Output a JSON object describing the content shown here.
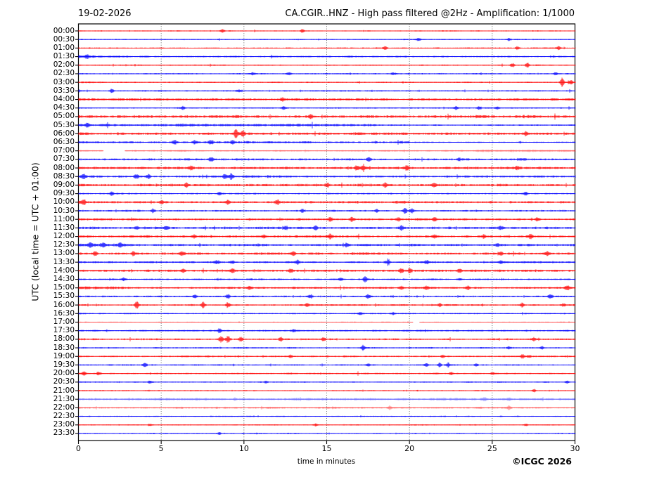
{
  "header": {
    "date": "19-02-2026",
    "title": "CA.CGIR..HNZ - High pass filtered @2Hz - Amplification: 1/1000"
  },
  "footer": {
    "copyright": "©ICGC 2026"
  },
  "chart_data": {
    "type": "line",
    "subtype": "helicorder-seismogram",
    "title": "CA.CGIR..HNZ - High pass filtered @2Hz - Amplification: 1/1000",
    "date": "19-02-2026",
    "xlabel": "time in minutes",
    "ylabel": "UTC (local time = UTC + 01:00)",
    "xlim": [
      0,
      30
    ],
    "xticks": [
      0,
      5,
      10,
      15,
      20,
      25,
      30
    ],
    "grid": {
      "vertical_dotted_at": [
        5,
        10,
        15,
        20,
        25
      ],
      "color": "#555555"
    },
    "trace_colors": {
      "hour": "#ff0000",
      "half_hour": "#0000ff"
    },
    "row_interval_minutes": 30,
    "rows": [
      {
        "time": "00:00",
        "color": "red",
        "amp": 0.8,
        "events": [
          [
            8.7,
            1.5
          ],
          [
            13.5,
            1.8
          ]
        ]
      },
      {
        "time": "00:30",
        "color": "blue",
        "amp": 0.8,
        "events": [
          [
            20.5,
            1.5
          ],
          [
            26.0,
            1.2
          ]
        ]
      },
      {
        "time": "01:00",
        "color": "red",
        "amp": 0.9,
        "events": [
          [
            18.5,
            2.2
          ],
          [
            26.5,
            2.0
          ],
          [
            29.0,
            1.8
          ]
        ]
      },
      {
        "time": "01:30",
        "color": "blue",
        "amp": 1.1,
        "events": [
          [
            0.5,
            2.0
          ]
        ],
        "segments": [
          [
            0,
            3,
            1.6
          ]
        ]
      },
      {
        "time": "02:00",
        "color": "red",
        "amp": 0.9,
        "events": [
          [
            26.2,
            2.2
          ],
          [
            27.1,
            3.0
          ]
        ]
      },
      {
        "time": "02:30",
        "color": "blue",
        "amp": 1.0,
        "events": [
          [
            10.5,
            1.8
          ],
          [
            12.7,
            1.6
          ],
          [
            19.0,
            1.4
          ],
          [
            28.8,
            1.4
          ]
        ]
      },
      {
        "time": "03:00",
        "color": "red",
        "amp": 0.9,
        "events": [
          [
            29.2,
            5.0
          ],
          [
            29.7,
            3.5
          ]
        ]
      },
      {
        "time": "03:30",
        "color": "blue",
        "amp": 1.0,
        "events": [
          [
            2.0,
            2.4
          ],
          [
            9.7,
            1.4
          ]
        ]
      },
      {
        "time": "04:00",
        "color": "red",
        "amp": 1.6,
        "events": [
          [
            12.3,
            2.0
          ]
        ]
      },
      {
        "time": "04:30",
        "color": "blue",
        "amp": 1.0,
        "events": [
          [
            6.3,
            2.4
          ],
          [
            12.4,
            2.0
          ],
          [
            22.8,
            2.0
          ],
          [
            24.2,
            2.0
          ],
          [
            25.3,
            1.5
          ]
        ]
      },
      {
        "time": "05:00",
        "color": "red",
        "amp": 1.9,
        "events": [
          [
            14.0,
            2.4
          ]
        ]
      },
      {
        "time": "05:30",
        "color": "blue",
        "amp": 1.8,
        "events": [
          [
            0.5,
            2.4
          ]
        ],
        "segments": [
          [
            18,
            30,
            0.55
          ]
        ]
      },
      {
        "time": "06:00",
        "color": "red",
        "amp": 1.7,
        "events": [
          [
            9.5,
            5.0
          ],
          [
            9.9,
            3.0
          ],
          [
            27.0,
            2.2
          ]
        ]
      },
      {
        "time": "06:30",
        "color": "blue",
        "amp": 1.4,
        "events": [
          [
            5.8,
            2.4
          ],
          [
            7.0,
            2.0
          ],
          [
            8.0,
            2.4
          ],
          [
            9.3,
            2.0
          ]
        ],
        "segments": [
          [
            20,
            30,
            0.6
          ]
        ]
      },
      {
        "time": "07:00",
        "color": "red",
        "amp": 1.2,
        "alpha": 0.35,
        "gaps": [
          [
            1.5,
            2.8
          ]
        ],
        "segments": [
          [
            24,
            30,
            1.5
          ]
        ]
      },
      {
        "time": "07:30",
        "color": "blue",
        "amp": 1.4,
        "events": [
          [
            8.0,
            2.8
          ],
          [
            17.5,
            2.4
          ],
          [
            23.0,
            1.8
          ]
        ]
      },
      {
        "time": "08:00",
        "color": "red",
        "amp": 1.6,
        "events": [
          [
            6.8,
            2.4
          ],
          [
            16.8,
            3.2
          ],
          [
            17.2,
            3.8
          ],
          [
            19.8,
            2.4
          ],
          [
            26.5,
            2.0
          ]
        ]
      },
      {
        "time": "08:30",
        "color": "blue",
        "amp": 1.5,
        "events": [
          [
            0.3,
            2.8
          ],
          [
            3.5,
            2.4
          ],
          [
            4.2,
            2.4
          ],
          [
            8.8,
            2.8
          ],
          [
            9.2,
            3.2
          ]
        ]
      },
      {
        "time": "09:00",
        "color": "red",
        "amp": 1.7,
        "events": [
          [
            6.5,
            2.0
          ],
          [
            15.0,
            2.0
          ],
          [
            18.5,
            2.4
          ],
          [
            21.5,
            2.0
          ]
        ]
      },
      {
        "time": "09:30",
        "color": "blue",
        "amp": 1.0,
        "events": [
          [
            2.0,
            2.0
          ],
          [
            8.5,
            2.4
          ],
          [
            27.0,
            2.0
          ]
        ]
      },
      {
        "time": "10:00",
        "color": "red",
        "amp": 1.6,
        "events": [
          [
            0.3,
            3.2
          ],
          [
            5.0,
            2.0
          ],
          [
            9.0,
            2.0
          ],
          [
            12.0,
            1.8
          ]
        ]
      },
      {
        "time": "10:30",
        "color": "blue",
        "amp": 1.2,
        "events": [
          [
            4.5,
            2.0
          ],
          [
            13.5,
            1.8
          ],
          [
            18.0,
            1.8
          ],
          [
            19.7,
            3.2
          ],
          [
            20.1,
            2.8
          ]
        ]
      },
      {
        "time": "11:00",
        "color": "red",
        "amp": 1.4,
        "events": [
          [
            15.2,
            2.8
          ],
          [
            16.5,
            2.4
          ],
          [
            19.3,
            2.4
          ],
          [
            21.5,
            2.4
          ],
          [
            27.7,
            1.8
          ]
        ]
      },
      {
        "time": "11:30",
        "color": "blue",
        "amp": 1.6,
        "events": [
          [
            3.5,
            2.0
          ],
          [
            5.3,
            2.0
          ],
          [
            12.5,
            2.4
          ],
          [
            14.3,
            2.4
          ],
          [
            19.5,
            2.4
          ],
          [
            25.5,
            2.0
          ]
        ]
      },
      {
        "time": "12:00",
        "color": "red",
        "amp": 1.5,
        "events": [
          [
            7.0,
            2.0
          ],
          [
            11.2,
            2.0
          ],
          [
            15.2,
            2.4
          ],
          [
            21.5,
            2.4
          ],
          [
            24.5,
            2.0
          ],
          [
            27.3,
            3.2
          ]
        ]
      },
      {
        "time": "12:30",
        "color": "blue",
        "amp": 1.5,
        "events": [
          [
            0.7,
            2.8
          ],
          [
            1.5,
            2.4
          ],
          [
            2.5,
            2.4
          ],
          [
            16.2,
            2.4
          ],
          [
            25.3,
            2.0
          ]
        ],
        "segments": [
          [
            0,
            4,
            1.4
          ]
        ]
      },
      {
        "time": "13:00",
        "color": "red",
        "amp": 1.5,
        "events": [
          [
            1.0,
            2.4
          ],
          [
            3.3,
            2.4
          ],
          [
            6.2,
            2.4
          ],
          [
            13.0,
            2.4
          ],
          [
            25.5,
            2.0
          ],
          [
            28.3,
            2.0
          ]
        ]
      },
      {
        "time": "13:30",
        "color": "blue",
        "amp": 1.3,
        "events": [
          [
            8.3,
            2.0
          ],
          [
            9.3,
            2.4
          ],
          [
            13.2,
            2.4
          ],
          [
            18.7,
            3.2
          ],
          [
            21.0,
            2.0
          ],
          [
            25.5,
            2.0
          ]
        ]
      },
      {
        "time": "14:00",
        "color": "red",
        "amp": 1.6,
        "events": [
          [
            6.3,
            2.0
          ],
          [
            9.3,
            2.0
          ],
          [
            12.8,
            2.0
          ],
          [
            19.5,
            2.8
          ],
          [
            20.0,
            2.4
          ],
          [
            23.0,
            2.0
          ]
        ]
      },
      {
        "time": "14:30",
        "color": "blue",
        "amp": 1.1,
        "events": [
          [
            2.7,
            2.0
          ],
          [
            15.8,
            2.0
          ],
          [
            17.3,
            3.2
          ],
          [
            23.0,
            1.5
          ]
        ]
      },
      {
        "time": "15:00",
        "color": "red",
        "amp": 1.4,
        "events": [
          [
            10.3,
            2.0
          ],
          [
            19.5,
            2.0
          ],
          [
            21.0,
            2.0
          ],
          [
            23.5,
            2.0
          ],
          [
            29.5,
            3.2
          ]
        ],
        "segments": [
          [
            0,
            3,
            1.4
          ]
        ]
      },
      {
        "time": "15:30",
        "color": "blue",
        "amp": 1.2,
        "events": [
          [
            7.0,
            2.0
          ],
          [
            9.0,
            2.4
          ],
          [
            14.0,
            2.0
          ],
          [
            17.5,
            2.0
          ],
          [
            28.5,
            2.4
          ]
        ]
      },
      {
        "time": "16:00",
        "color": "red",
        "amp": 1.1,
        "events": [
          [
            3.5,
            3.8
          ],
          [
            7.5,
            3.4
          ],
          [
            9.0,
            3.4
          ],
          [
            13.8,
            2.0
          ],
          [
            21.8,
            2.0
          ],
          [
            26.8,
            2.4
          ],
          [
            29.3,
            2.0
          ]
        ]
      },
      {
        "time": "16:30",
        "color": "blue",
        "amp": 0.9,
        "events": [
          [
            17.0,
            1.4
          ],
          [
            19.0,
            1.4
          ]
        ]
      },
      {
        "time": "17:00",
        "color": "red",
        "amp": 0.7,
        "alpha": 0.5,
        "gaps": [
          [
            20.2,
            20.6
          ]
        ]
      },
      {
        "time": "17:30",
        "color": "blue",
        "amp": 1.1,
        "events": [
          [
            8.5,
            2.8
          ],
          [
            13.0,
            1.6
          ]
        ]
      },
      {
        "time": "18:00",
        "color": "red",
        "amp": 1.2,
        "events": [
          [
            8.6,
            3.8
          ],
          [
            9.0,
            3.8
          ],
          [
            9.8,
            2.4
          ],
          [
            12.2,
            2.4
          ],
          [
            14.8,
            2.0
          ],
          [
            27.5,
            2.0
          ]
        ]
      },
      {
        "time": "18:30",
        "color": "blue",
        "amp": 1.0,
        "events": [
          [
            17.2,
            3.2
          ],
          [
            26.0,
            1.5
          ],
          [
            28.0,
            1.5
          ]
        ]
      },
      {
        "time": "19:00",
        "color": "red",
        "amp": 1.1,
        "events": [
          [
            12.8,
            2.0
          ],
          [
            22.0,
            1.5
          ],
          [
            26.8,
            2.4
          ],
          [
            27.2,
            2.0
          ]
        ]
      },
      {
        "time": "19:30",
        "color": "blue",
        "amp": 1.0,
        "events": [
          [
            4.0,
            2.8
          ],
          [
            17.5,
            1.5
          ],
          [
            21.0,
            2.0
          ],
          [
            21.8,
            2.4
          ],
          [
            22.3,
            2.4
          ],
          [
            24.0,
            1.5
          ]
        ]
      },
      {
        "time": "20:00",
        "color": "red",
        "amp": 1.0,
        "events": [
          [
            0.3,
            2.4
          ],
          [
            1.2,
            2.0
          ],
          [
            22.5,
            1.5
          ],
          [
            25.0,
            1.4
          ]
        ]
      },
      {
        "time": "20:30",
        "color": "blue",
        "amp": 0.9,
        "events": [
          [
            4.3,
            1.5
          ],
          [
            11.3,
            1.4
          ],
          [
            29.5,
            1.4
          ]
        ]
      },
      {
        "time": "21:00",
        "color": "red",
        "amp": 0.8,
        "events": [
          [
            27.5,
            1.4
          ]
        ]
      },
      {
        "time": "21:30",
        "color": "blue",
        "amp": 1.6,
        "alpha": 0.35,
        "events": [
          [
            24.5,
            1.5
          ],
          [
            26.0,
            1.5
          ]
        ]
      },
      {
        "time": "22:00",
        "color": "red",
        "amp": 1.3,
        "alpha": 0.4,
        "events": [
          [
            18.8,
            2.4
          ],
          [
            26.0,
            2.0
          ]
        ]
      },
      {
        "time": "22:30",
        "color": "blue",
        "amp": 0.8,
        "events": []
      },
      {
        "time": "23:00",
        "color": "red",
        "amp": 0.8,
        "events": [
          [
            4.3,
            1.2
          ],
          [
            14.3,
            1.2
          ],
          [
            27.0,
            1.4
          ]
        ]
      },
      {
        "time": "23:30",
        "color": "blue",
        "amp": 0.8,
        "events": [
          [
            8.5,
            1.4
          ]
        ]
      }
    ]
  }
}
